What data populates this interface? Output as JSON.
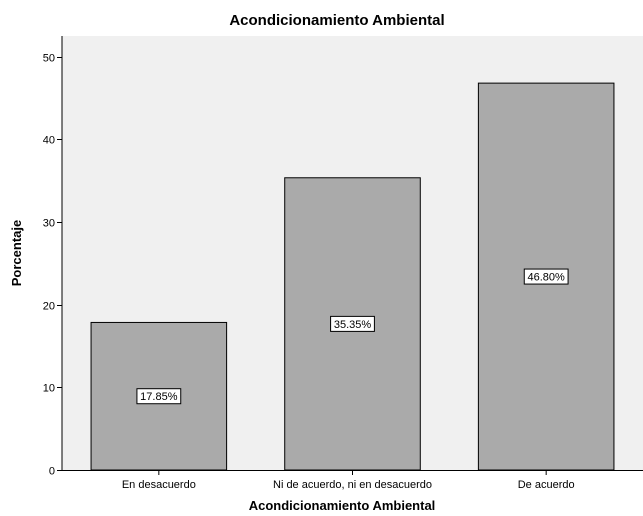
{
  "chart_data": {
    "type": "bar",
    "title": "Acondicionamiento Ambiental",
    "xlabel": "Acondicionamiento Ambiental",
    "ylabel": "Porcentaje",
    "categories": [
      "En desacuerdo",
      "Ni de acuerdo, ni en desacuerdo",
      "De acuerdo"
    ],
    "values": [
      17.85,
      35.35,
      46.8
    ],
    "data_labels": [
      "17.85%",
      "35.35%",
      "46.80%"
    ],
    "ylim": [
      0,
      52.5
    ],
    "yticks": [
      0,
      10,
      20,
      30,
      40,
      50
    ],
    "grid": false,
    "legend": "none",
    "colors": {
      "plot_background": "#f0f0f0",
      "bar_fill": "#aaaaaa",
      "bar_stroke": "#000000",
      "label_box": "#ffffff"
    }
  }
}
